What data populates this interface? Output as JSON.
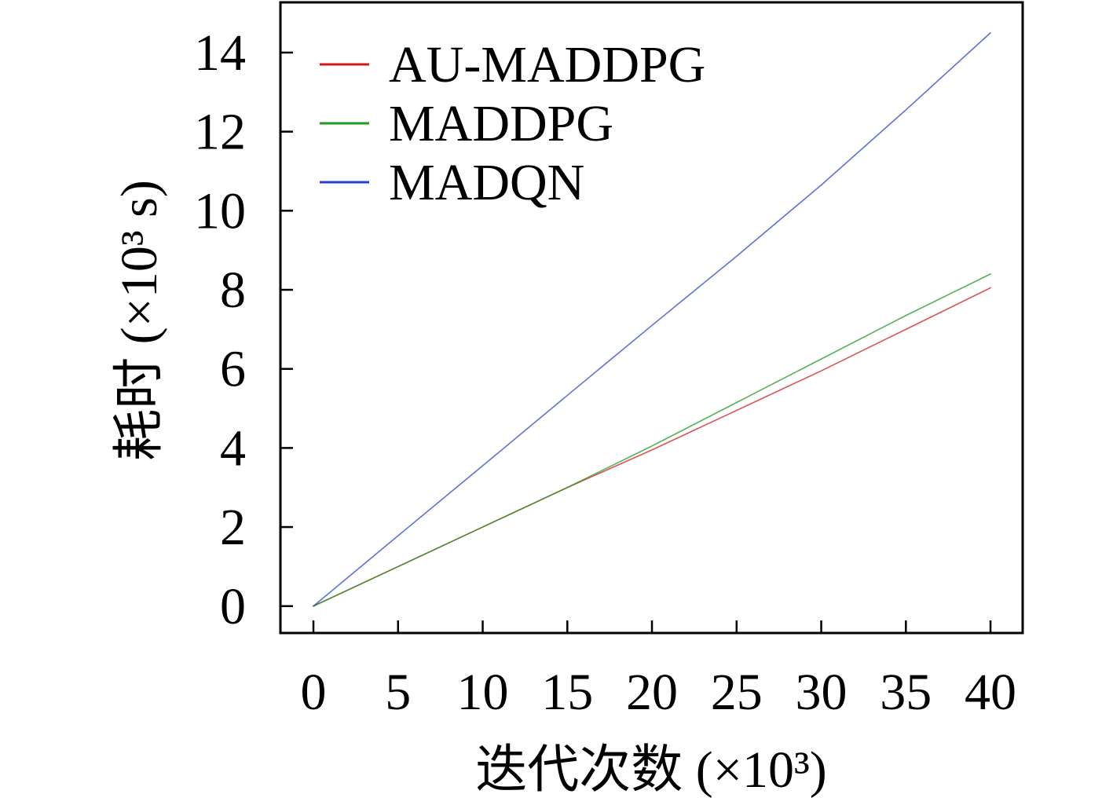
{
  "chart_data": {
    "type": "line",
    "xlabel": "迭代次数 (×10³)",
    "ylabel": "耗时 (×10³ s)",
    "x": [
      0,
      5,
      10,
      15,
      20,
      25,
      30,
      35,
      40
    ],
    "series": [
      {
        "name": "AU-MADDPG",
        "color": "#d01a1a",
        "values": [
          0,
          1.0,
          2.0,
          3.0,
          3.95,
          4.95,
          5.95,
          7.0,
          8.05
        ]
      },
      {
        "name": "MADDPG",
        "color": "#1f9a1f",
        "values": [
          0,
          1.0,
          2.0,
          3.0,
          4.05,
          5.15,
          6.25,
          7.35,
          8.4
        ]
      },
      {
        "name": "MADQN",
        "color": "#2a42c8",
        "values": [
          0,
          1.78,
          3.55,
          5.33,
          7.1,
          8.85,
          10.65,
          12.55,
          14.5
        ]
      }
    ],
    "xticks": [
      0,
      5,
      10,
      15,
      20,
      25,
      30,
      35,
      40
    ],
    "yticks": [
      0,
      2,
      4,
      6,
      8,
      10,
      12,
      14
    ],
    "xlim": [
      -1.95,
      41.9
    ],
    "ylim": [
      -0.68,
      15.27
    ],
    "legend": "top-left",
    "grid": false
  }
}
